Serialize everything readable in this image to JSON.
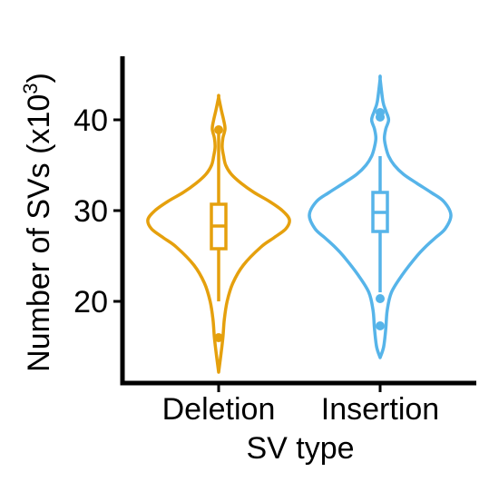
{
  "chart_data": {
    "type": "violin",
    "title": "",
    "xlabel": "SV type",
    "ylabel": "Number of SVs (x10",
    "ylabel_superscript": "3",
    "ylabel_suffix": ")",
    "ylim": [
      11,
      47
    ],
    "yticks": [
      20,
      30,
      40
    ],
    "categories": [
      "Deletion",
      "Insertion"
    ],
    "grid": false,
    "legend": "none",
    "series": [
      {
        "category": "Deletion",
        "color": "#E5A00D",
        "violin_min": 12.2,
        "violin_max": 42.5,
        "violin_profile": [
          [
            12.2,
            0.0
          ],
          [
            14.0,
            0.03
          ],
          [
            16.0,
            0.06
          ],
          [
            18.0,
            0.08
          ],
          [
            20.0,
            0.12
          ],
          [
            22.0,
            0.2
          ],
          [
            24.0,
            0.35
          ],
          [
            26.0,
            0.6
          ],
          [
            27.0,
            0.78
          ],
          [
            28.0,
            0.95
          ],
          [
            29.0,
            1.0
          ],
          [
            30.0,
            0.9
          ],
          [
            31.0,
            0.72
          ],
          [
            32.0,
            0.5
          ],
          [
            33.0,
            0.32
          ],
          [
            34.0,
            0.18
          ],
          [
            35.0,
            0.1
          ],
          [
            36.0,
            0.07
          ],
          [
            37.0,
            0.05
          ],
          [
            38.0,
            0.06
          ],
          [
            39.0,
            0.09
          ],
          [
            40.0,
            0.07
          ],
          [
            41.0,
            0.04
          ],
          [
            42.5,
            0.0
          ]
        ],
        "whisker_low": 20.0,
        "q1": 25.8,
        "median": 28.3,
        "q3": 30.7,
        "whisker_high": 38.8,
        "outliers": [
          16.0,
          38.9
        ]
      },
      {
        "category": "Insertion",
        "color": "#56B4E9",
        "violin_min": 13.8,
        "violin_max": 44.5,
        "violin_profile": [
          [
            13.8,
            0.0
          ],
          [
            15.0,
            0.05
          ],
          [
            17.0,
            0.08
          ],
          [
            19.0,
            0.1
          ],
          [
            21.0,
            0.16
          ],
          [
            23.0,
            0.32
          ],
          [
            25.0,
            0.52
          ],
          [
            26.0,
            0.64
          ],
          [
            27.0,
            0.78
          ],
          [
            28.0,
            0.92
          ],
          [
            29.5,
            1.0
          ],
          [
            31.0,
            0.9
          ],
          [
            32.0,
            0.72
          ],
          [
            33.0,
            0.52
          ],
          [
            34.0,
            0.33
          ],
          [
            35.0,
            0.2
          ],
          [
            36.0,
            0.12
          ],
          [
            37.0,
            0.08
          ],
          [
            38.0,
            0.06
          ],
          [
            39.0,
            0.08
          ],
          [
            40.0,
            0.12
          ],
          [
            41.0,
            0.08
          ],
          [
            42.0,
            0.04
          ],
          [
            44.5,
            0.0
          ]
        ],
        "whisker_low": 21.0,
        "q1": 27.7,
        "median": 29.8,
        "q3": 32.0,
        "whisker_high": 36.0,
        "outliers": [
          17.3,
          20.3,
          40.3,
          40.8
        ]
      }
    ]
  }
}
